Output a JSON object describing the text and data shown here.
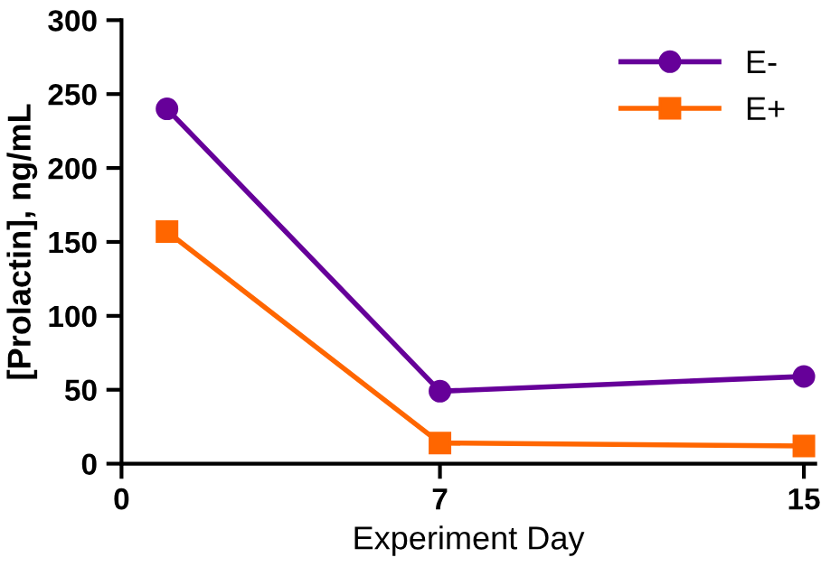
{
  "chart_data": {
    "type": "line",
    "xlabel": "Experiment Day",
    "ylabel": "[Prolactin], ng/mL",
    "x": [
      1,
      7,
      15
    ],
    "series": [
      {
        "name": "E-",
        "color": "#660099",
        "values": [
          240,
          49,
          59
        ],
        "marker": "circle"
      },
      {
        "name": "E+",
        "color": "#ff6600",
        "values": [
          157,
          14,
          12
        ],
        "marker": "square"
      }
    ],
    "xlim": [
      0,
      15.25
    ],
    "xticks": [
      0,
      7,
      15
    ],
    "ylim": [
      0,
      300
    ],
    "yticks": [
      0,
      50,
      100,
      150,
      200,
      250,
      300
    ],
    "grid": false,
    "legend": "top right",
    "line_style": "solid"
  }
}
